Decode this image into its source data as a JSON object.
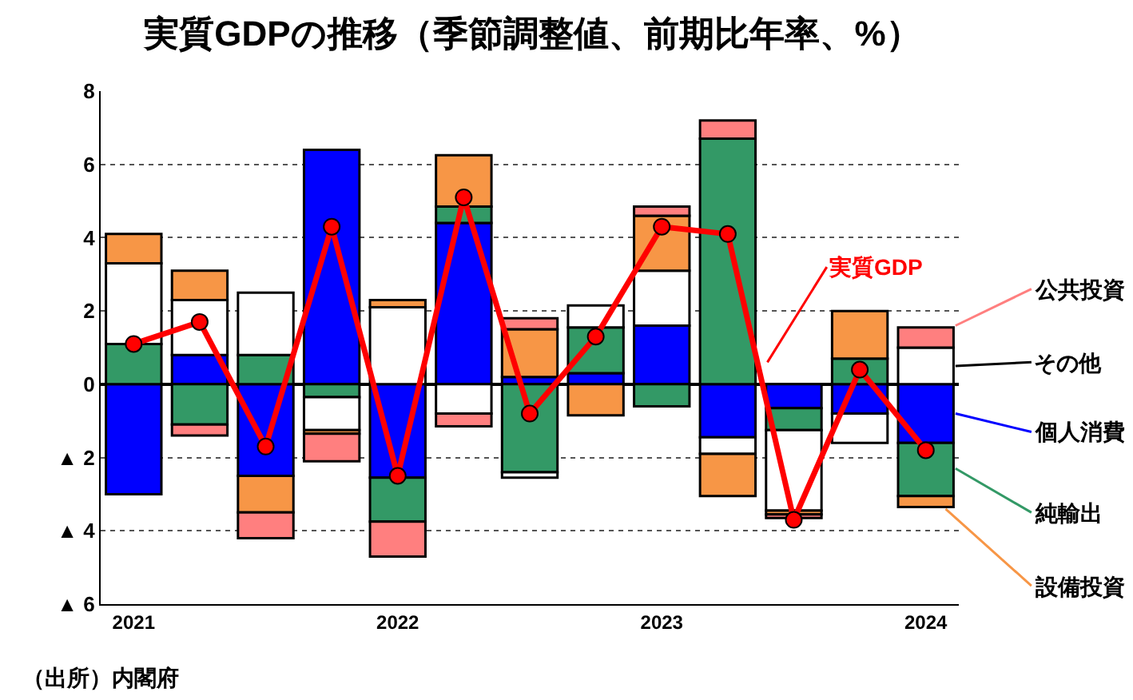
{
  "chart_data": {
    "type": "bar",
    "stacked": true,
    "title": "実質GDPの推移（季節調整値、前期比年率、%）",
    "categories": [
      "2021",
      null,
      null,
      null,
      "2022",
      null,
      null,
      null,
      "2023",
      null,
      null,
      null,
      "2024"
    ],
    "series": [
      {
        "name": "個人消費",
        "color": "#0000ff",
        "values": [
          -3.0,
          0.8,
          -2.5,
          6.4,
          -2.55,
          4.4,
          0.2,
          0.3,
          1.6,
          -1.45,
          -0.65,
          -0.8,
          -1.6
        ]
      },
      {
        "name": "純輸出",
        "color": "#339966",
        "values": [
          1.1,
          -1.1,
          0.8,
          -0.35,
          -1.2,
          0.45,
          -2.4,
          1.25,
          -0.6,
          6.7,
          -0.6,
          0.7,
          -1.45
        ]
      },
      {
        "name": "その他",
        "color": "#ffffff",
        "values": [
          2.2,
          1.5,
          1.7,
          -0.9,
          2.1,
          -0.8,
          -0.15,
          0.6,
          1.5,
          -0.45,
          -2.2,
          -0.8,
          1.0
        ]
      },
      {
        "name": "設備投資",
        "color": "#f79646",
        "values": [
          0.8,
          0.8,
          -1.0,
          -0.1,
          0.2,
          1.4,
          1.3,
          -0.85,
          1.5,
          -1.15,
          -0.1,
          1.3,
          -0.3
        ]
      },
      {
        "name": "公共投資",
        "color": "#ff7f7f",
        "values": [
          null,
          -0.3,
          -0.7,
          -0.75,
          -0.95,
          -0.35,
          0.3,
          null,
          0.25,
          0.5,
          -0.1,
          null,
          0.55
        ]
      },
      {
        "name": "実質GDP",
        "type": "line",
        "color": "#ff0000",
        "marker": "circle",
        "values": [
          1.1,
          1.7,
          -1.7,
          4.3,
          -2.5,
          5.1,
          -0.8,
          1.3,
          4.3,
          4.1,
          -3.7,
          0.4,
          -1.8
        ]
      }
    ],
    "ylim": [
      -6,
      8
    ],
    "yticks": [
      {
        "value": -6,
        "label": "▲ 6"
      },
      {
        "value": -4,
        "label": "▲ 4"
      },
      {
        "value": -2,
        "label": "▲ 2"
      },
      0,
      2,
      4,
      6,
      8
    ],
    "grid": "y",
    "legend": "right",
    "annotations": [
      "（出所）内閣府"
    ]
  }
}
